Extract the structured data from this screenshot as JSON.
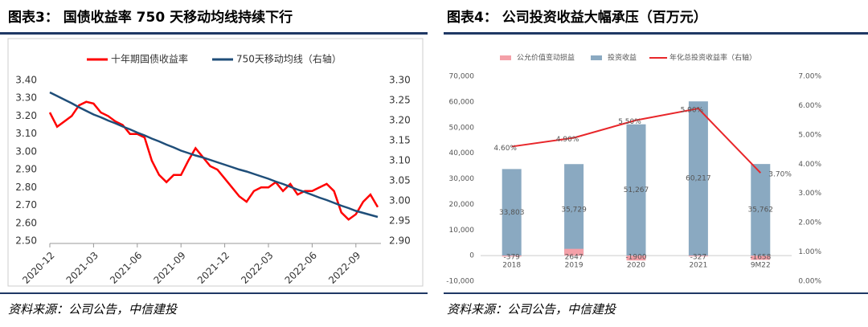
{
  "chart_data": [
    {
      "type": "line",
      "title": "图表3： 国债收益率 750 天移动均线持续下行",
      "source": "资料来源：公司公告，中信建投",
      "x": [
        "2020-12",
        null,
        null,
        null,
        null,
        null,
        "2021-03",
        null,
        null,
        null,
        null,
        null,
        "2021-06",
        null,
        null,
        null,
        null,
        null,
        "2021-09",
        null,
        null,
        null,
        null,
        null,
        "2021-12",
        null,
        null,
        null,
        null,
        null,
        "2022-03",
        null,
        null,
        null,
        null,
        null,
        "2022-06",
        null,
        null,
        null,
        null,
        null,
        "2022-09",
        null,
        null,
        null
      ],
      "series": [
        {
          "name": "十年期国债收益率",
          "color": "#ff0000",
          "axis": "y",
          "values": [
            3.22,
            3.14,
            3.17,
            3.2,
            3.26,
            3.28,
            3.27,
            3.22,
            3.2,
            3.17,
            3.15,
            3.1,
            3.1,
            3.08,
            2.95,
            2.87,
            2.83,
            2.87,
            2.87,
            2.95,
            3.02,
            2.97,
            2.92,
            2.9,
            2.85,
            2.8,
            2.75,
            2.72,
            2.78,
            2.8,
            2.8,
            2.83,
            2.78,
            2.82,
            2.76,
            2.78,
            2.78,
            2.8,
            2.82,
            2.78,
            2.66,
            2.62,
            2.65,
            2.72,
            2.76,
            2.69
          ]
        },
        {
          "name": "750天移动均线（右轴）",
          "color": "#1f4e79",
          "axis": "y2",
          "values": [
            3.27,
            3.261,
            3.252,
            3.243,
            3.233,
            3.224,
            3.215,
            3.208,
            3.2,
            3.193,
            3.185,
            3.178,
            3.17,
            3.163,
            3.155,
            3.148,
            3.14,
            3.133,
            3.125,
            3.119,
            3.113,
            3.108,
            3.102,
            3.096,
            3.09,
            3.084,
            3.078,
            3.073,
            3.067,
            3.061,
            3.055,
            3.048,
            3.042,
            3.035,
            3.028,
            3.022,
            3.015,
            3.008,
            3.002,
            2.995,
            2.988,
            2.982,
            2.975,
            2.97,
            2.965,
            2.96
          ]
        }
      ],
      "ylim": [
        2.5,
        3.4
      ],
      "yticks": [
        {
          "value": 2.5,
          "label": "2.50"
        },
        {
          "value": 2.6,
          "label": "2.60"
        },
        {
          "value": 2.7,
          "label": "2.70"
        },
        {
          "value": 2.8,
          "label": "2.80"
        },
        {
          "value": 2.9,
          "label": "2.90"
        },
        {
          "value": 3.0,
          "label": "3.00"
        },
        {
          "value": 3.1,
          "label": "3.10"
        },
        {
          "value": 3.2,
          "label": "3.20"
        },
        {
          "value": 3.3,
          "label": "3.30"
        },
        {
          "value": 3.4,
          "label": "3.40"
        }
      ],
      "y2lim": [
        2.9,
        3.3
      ],
      "y2ticks": [
        {
          "value": 2.9,
          "label": "2.90"
        },
        {
          "value": 2.95,
          "label": "2.95"
        },
        {
          "value": 3.0,
          "label": "3.00"
        },
        {
          "value": 3.05,
          "label": "3.05"
        },
        {
          "value": 3.1,
          "label": "3.10"
        },
        {
          "value": 3.15,
          "label": "3.15"
        },
        {
          "value": 3.2,
          "label": "3.20"
        },
        {
          "value": 3.25,
          "label": "3.25"
        },
        {
          "value": 3.3,
          "label": "3.30"
        }
      ],
      "legend": "top"
    },
    {
      "type": "bar",
      "title": "图表4： 公司投资收益大幅承压（百万元）",
      "source": "资料来源：公司公告，中信建投",
      "categories": [
        "2018",
        "2019",
        "2020",
        "2021",
        "9M22"
      ],
      "series": [
        {
          "name": "公允价值变动损益",
          "color": "#f4a0a8",
          "type": "bar",
          "axis": "y",
          "values": [
            -379,
            2647,
            -1900,
            -327,
            -1658
          ]
        },
        {
          "name": "投资收益",
          "color": "#8aa9c1",
          "type": "bar",
          "axis": "y",
          "values": [
            33803,
            35729,
            51267,
            60217,
            35762
          ],
          "value_labels": [
            "33,803",
            "35,729",
            "51,267",
            "60,217",
            "35,762"
          ]
        },
        {
          "name": "年化总投资收益率（右轴）",
          "color": "#e8262a",
          "type": "line",
          "axis": "y2",
          "values": [
            4.6,
            4.9,
            5.5,
            5.9,
            3.7
          ],
          "value_labels": [
            "4.60%",
            "4.90%",
            "5.50%",
            "5.90%",
            "3.70%"
          ]
        }
      ],
      "ylim": [
        -10000,
        70000
      ],
      "yticks": [
        {
          "value": -10000,
          "label": "-10,000"
        },
        0,
        {
          "value": 10000,
          "label": "10,000"
        },
        {
          "value": 20000,
          "label": "20,000"
        },
        {
          "value": 30000,
          "label": "30,000"
        },
        {
          "value": 40000,
          "label": "40,000"
        },
        {
          "value": 50000,
          "label": "50,000"
        },
        {
          "value": 60000,
          "label": "60,000"
        },
        {
          "value": 70000,
          "label": "70,000"
        }
      ],
      "y2lim": [
        0,
        7
      ],
      "y2ticks": [
        {
          "value": 0,
          "label": "0.00%"
        },
        {
          "value": 1,
          "label": "1.00%"
        },
        {
          "value": 2,
          "label": "2.00%"
        },
        {
          "value": 3,
          "label": "3.00%"
        },
        {
          "value": 4,
          "label": "4.00%"
        },
        {
          "value": 5,
          "label": "5.00%"
        },
        {
          "value": 6,
          "label": "6.00%"
        },
        {
          "value": 7,
          "label": "7.00%"
        }
      ],
      "legend": "top"
    }
  ]
}
